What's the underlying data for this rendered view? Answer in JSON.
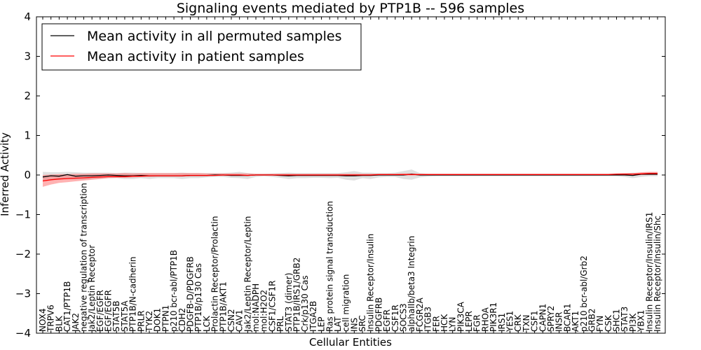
{
  "chart_data": {
    "type": "line",
    "title": "Signaling events mediated by PTP1B -- 596 samples",
    "xlabel": "Cellular Entities",
    "ylabel": "Inferred Activity",
    "ylim": [
      -4,
      4
    ],
    "yticks": [
      -4,
      -3,
      -2,
      -1,
      0,
      1,
      2,
      3,
      4
    ],
    "ytick_labels": [
      "−4",
      "−3",
      "−2",
      "−1",
      "0",
      "1",
      "2",
      "3",
      "4"
    ],
    "legend_position": "top-left",
    "categories": [
      "NOX4",
      "TRPV6",
      "BLK",
      "CAT1/PTP1B",
      "JAK2",
      "negative regulation of transcription",
      "Jak2/Leptin Receptor",
      "EGF/EGFR",
      "EGF/EGFR",
      "STAT5B",
      "STAT5A",
      "PTP1B/N-cadherin",
      "PRLR",
      "TYK2",
      "DOK1",
      "PTPN1",
      "p210 bcr-abl/PTP1B",
      "CDH2",
      "PDGFB-D/PDGFRB",
      "PTP1B/p130 Cas",
      "LCK",
      "Prolactin Receptor/Prolactin",
      "PTP1B/AKT1",
      "CSN2",
      "CAV1",
      "Jak2/Leptin Receptor/Leptin",
      "mol:NADPH",
      "mol:H2O2",
      "CSF1/CSF1R",
      "PRL",
      "STAT3 (dimer)",
      "PTP1B/IRS1/GRB2",
      "Crk/p130 Cas",
      "ITGA2B",
      "LEP",
      "Ras protein signal transduction",
      "LAT",
      "cell migration",
      "INS",
      "SRC",
      "Insulin Receptor/Insulin",
      "PDGFRB",
      "EGFR",
      "CSF1R",
      "SOCS3",
      "alphaIIb/beta3 Integrin",
      "FCGR2A",
      "ITGB3",
      "FER",
      "HCK",
      "LYN",
      "PIK3CA",
      "LEPR",
      "FGR",
      "RHOA",
      "PIK3R1",
      "IRS1",
      "YES1",
      "CRK",
      "TXN",
      "CSF1",
      "CAPN1",
      "SPRY2",
      "INSR",
      "BCAR1",
      "AKT1",
      "p210 bcr-abl/Grb2",
      "GRB2",
      "FYN",
      "CSK",
      "SHC1",
      "STAT3",
      "PI3K",
      "YBX1",
      "Insulin Receptor/Insulin/IRS1",
      "Insulin Receptor/Insulin/Shc"
    ],
    "series": [
      {
        "name": "Mean activity in all permuted samples",
        "color": "#000000",
        "values": [
          -0.05,
          -0.02,
          -0.03,
          0.01,
          -0.03,
          -0.02,
          -0.02,
          -0.01,
          0.0,
          -0.01,
          -0.02,
          -0.02,
          -0.01,
          -0.02,
          -0.02,
          -0.02,
          -0.02,
          -0.02,
          -0.01,
          -0.01,
          -0.01,
          0.0,
          0.0,
          -0.01,
          -0.01,
          -0.01,
          0.0,
          0.0,
          0.0,
          -0.01,
          -0.02,
          -0.01,
          -0.01,
          -0.01,
          -0.01,
          -0.01,
          -0.01,
          -0.02,
          -0.02,
          -0.01,
          -0.01,
          0.0,
          0.0,
          0.0,
          0.0,
          0.02,
          0.0,
          0.0,
          0.0,
          0.0,
          0.0,
          0.0,
          0.0,
          0.0,
          0.0,
          0.0,
          0.0,
          0.0,
          0.0,
          0.0,
          0.0,
          0.0,
          0.0,
          0.0,
          0.0,
          0.0,
          0.0,
          0.0,
          0.0,
          0.0,
          0.0,
          0.0,
          -0.01,
          0.02,
          0.02,
          0.02
        ],
        "band_low": [
          -0.15,
          -0.12,
          -0.12,
          -0.1,
          -0.12,
          -0.12,
          -0.1,
          -0.09,
          -0.08,
          -0.08,
          -0.1,
          -0.1,
          -0.08,
          -0.1,
          -0.08,
          -0.08,
          -0.08,
          -0.1,
          -0.08,
          -0.08,
          -0.06,
          -0.05,
          -0.05,
          -0.07,
          -0.08,
          -0.1,
          -0.05,
          -0.03,
          -0.05,
          -0.07,
          -0.1,
          -0.08,
          -0.08,
          -0.07,
          -0.07,
          -0.08,
          -0.07,
          -0.12,
          -0.14,
          -0.08,
          -0.1,
          -0.06,
          -0.05,
          -0.05,
          -0.1,
          -0.12,
          -0.06,
          -0.04,
          -0.03,
          -0.03,
          -0.03,
          -0.03,
          -0.03,
          -0.03,
          -0.03,
          -0.03,
          -0.03,
          -0.03,
          -0.03,
          -0.03,
          -0.03,
          -0.03,
          -0.03,
          -0.03,
          -0.03,
          -0.03,
          -0.03,
          -0.03,
          -0.03,
          -0.03,
          -0.03,
          -0.05,
          -0.08,
          -0.05,
          -0.03,
          -0.03
        ],
        "band_high": [
          0.08,
          0.07,
          0.07,
          0.08,
          0.07,
          0.06,
          0.06,
          0.06,
          0.06,
          0.05,
          0.06,
          0.06,
          0.05,
          0.05,
          0.05,
          0.05,
          0.05,
          0.06,
          0.05,
          0.05,
          0.05,
          0.05,
          0.05,
          0.06,
          0.08,
          0.05,
          0.03,
          0.03,
          0.04,
          0.05,
          0.06,
          0.05,
          0.05,
          0.05,
          0.05,
          0.05,
          0.05,
          0.07,
          0.1,
          0.06,
          0.06,
          0.05,
          0.05,
          0.06,
          0.1,
          0.14,
          0.05,
          0.03,
          0.03,
          0.03,
          0.03,
          0.03,
          0.03,
          0.03,
          0.03,
          0.03,
          0.03,
          0.03,
          0.03,
          0.03,
          0.03,
          0.03,
          0.03,
          0.03,
          0.03,
          0.03,
          0.03,
          0.03,
          0.03,
          0.03,
          0.03,
          0.04,
          0.06,
          0.05,
          0.03,
          0.03
        ]
      },
      {
        "name": "Mean activity in patient samples",
        "color": "#ff0000",
        "values": [
          -0.15,
          -0.12,
          -0.1,
          -0.09,
          -0.08,
          -0.07,
          -0.06,
          -0.05,
          -0.04,
          -0.04,
          -0.04,
          -0.03,
          -0.03,
          -0.02,
          -0.02,
          -0.02,
          -0.02,
          -0.02,
          -0.01,
          -0.01,
          -0.01,
          -0.01,
          0.0,
          0.0,
          0.0,
          -0.01,
          0.0,
          0.0,
          0.0,
          0.0,
          0.0,
          0.0,
          0.0,
          0.0,
          0.0,
          0.0,
          0.0,
          0.0,
          0.0,
          0.0,
          0.0,
          0.01,
          0.01,
          0.01,
          0.01,
          0.01,
          0.01,
          0.01,
          0.01,
          0.01,
          0.01,
          0.01,
          0.01,
          0.01,
          0.01,
          0.01,
          0.01,
          0.01,
          0.01,
          0.01,
          0.01,
          0.01,
          0.01,
          0.01,
          0.01,
          0.01,
          0.01,
          0.01,
          0.01,
          0.01,
          0.02,
          0.02,
          0.02,
          0.03,
          0.04,
          0.04
        ],
        "band_low": [
          -0.3,
          -0.24,
          -0.2,
          -0.18,
          -0.16,
          -0.14,
          -0.12,
          -0.1,
          -0.08,
          -0.07,
          -0.07,
          -0.06,
          -0.05,
          -0.05,
          -0.04,
          -0.04,
          -0.04,
          -0.04,
          -0.03,
          -0.03,
          -0.03,
          -0.02,
          -0.02,
          -0.02,
          -0.02,
          -0.02,
          -0.01,
          -0.01,
          -0.01,
          -0.01,
          -0.01,
          -0.01,
          -0.01,
          -0.01,
          -0.01,
          -0.01,
          -0.01,
          -0.01,
          -0.01,
          -0.01,
          -0.01,
          -0.01,
          -0.01,
          -0.01,
          -0.01,
          -0.01,
          -0.01,
          -0.01,
          -0.01,
          -0.01,
          -0.01,
          -0.01,
          -0.01,
          -0.01,
          -0.01,
          -0.01,
          -0.01,
          -0.01,
          -0.01,
          -0.01,
          -0.01,
          -0.01,
          -0.01,
          -0.01,
          -0.01,
          -0.01,
          -0.01,
          -0.01,
          -0.01,
          -0.01,
          -0.01,
          -0.01,
          -0.01,
          0.0,
          0.0,
          0.0
        ],
        "band_high": [
          0.0,
          0.01,
          0.02,
          0.02,
          0.03,
          0.03,
          0.04,
          0.04,
          0.04,
          0.04,
          0.05,
          0.04,
          0.05,
          0.05,
          0.05,
          0.05,
          0.05,
          0.05,
          0.05,
          0.05,
          0.04,
          0.04,
          0.04,
          0.04,
          0.04,
          0.04,
          0.03,
          0.03,
          0.03,
          0.03,
          0.03,
          0.03,
          0.03,
          0.03,
          0.03,
          0.03,
          0.03,
          0.03,
          0.03,
          0.03,
          0.03,
          0.03,
          0.03,
          0.03,
          0.04,
          0.04,
          0.03,
          0.03,
          0.03,
          0.03,
          0.03,
          0.03,
          0.03,
          0.03,
          0.03,
          0.03,
          0.03,
          0.03,
          0.03,
          0.03,
          0.03,
          0.03,
          0.03,
          0.03,
          0.03,
          0.03,
          0.03,
          0.03,
          0.03,
          0.03,
          0.04,
          0.05,
          0.05,
          0.07,
          0.08,
          0.08
        ]
      }
    ]
  }
}
